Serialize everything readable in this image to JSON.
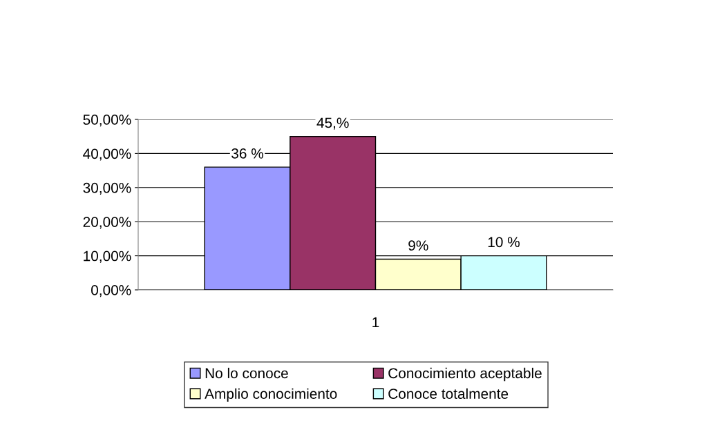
{
  "chart_data": {
    "type": "bar",
    "categories": [
      "1"
    ],
    "series": [
      {
        "name": "No lo conoce",
        "color": "#9999ff",
        "values": [
          36
        ],
        "value_labels": [
          "36 %"
        ]
      },
      {
        "name": "Conocimiento aceptable",
        "color": "#993366",
        "values": [
          45
        ],
        "value_labels": [
          "45,%"
        ]
      },
      {
        "name": "Amplio conocimiento",
        "color": "#ffffcc",
        "values": [
          9
        ],
        "value_labels": [
          "9%"
        ]
      },
      {
        "name": "Conoce totalmente",
        "color": "#ccffff",
        "values": [
          10
        ],
        "value_labels": [
          "10 %"
        ]
      }
    ],
    "ylim": [
      0,
      50
    ],
    "yticks": [
      {
        "value": 0,
        "label": "0,00%"
      },
      {
        "value": 10,
        "label": "10,00%"
      },
      {
        "value": 20,
        "label": "20,00%"
      },
      {
        "value": 30,
        "label": "30,00%"
      },
      {
        "value": 40,
        "label": "40,00%"
      },
      {
        "value": 50,
        "label": "50,00%"
      }
    ],
    "grid": "y",
    "legend": "bottom"
  }
}
